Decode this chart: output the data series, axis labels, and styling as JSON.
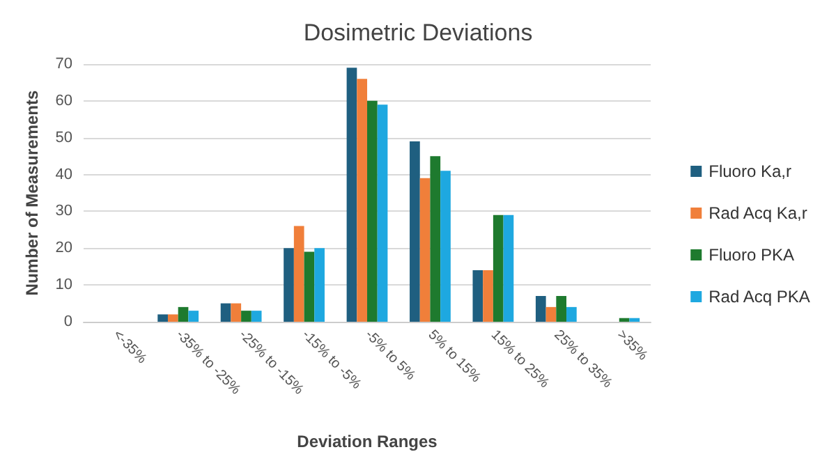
{
  "chart_data": {
    "type": "bar",
    "title": "Dosimetric Deviations",
    "xlabel": "Deviation Ranges",
    "ylabel": "Number of Measurements",
    "categories": [
      "<-35%",
      "-35% to -25%",
      "-25% to -15%",
      "-15% to -5%",
      "-5% to 5%",
      "5% to 15%",
      "15% to 25%",
      "25% to 35%",
      ">35%"
    ],
    "series": [
      {
        "name": "Fluoro Ka,r",
        "color": "#1f5f80",
        "values": [
          0,
          2,
          5,
          20,
          69,
          49,
          14,
          7,
          0
        ]
      },
      {
        "name": "Rad Acq Ka,r",
        "color": "#f07f3a",
        "values": [
          0,
          2,
          5,
          26,
          66,
          39,
          14,
          4,
          0
        ]
      },
      {
        "name": "Fluoro PKA",
        "color": "#1e7a2e",
        "values": [
          0,
          4,
          3,
          19,
          60,
          45,
          29,
          7,
          1
        ]
      },
      {
        "name": "Rad Acq PKA",
        "color": "#1ea8e0",
        "values": [
          0,
          3,
          3,
          20,
          59,
          41,
          29,
          4,
          1
        ]
      }
    ],
    "ylim": [
      0,
      70
    ],
    "yticks": [
      0,
      10,
      20,
      30,
      40,
      50,
      60,
      70
    ],
    "grid": "y",
    "legend": "right"
  }
}
